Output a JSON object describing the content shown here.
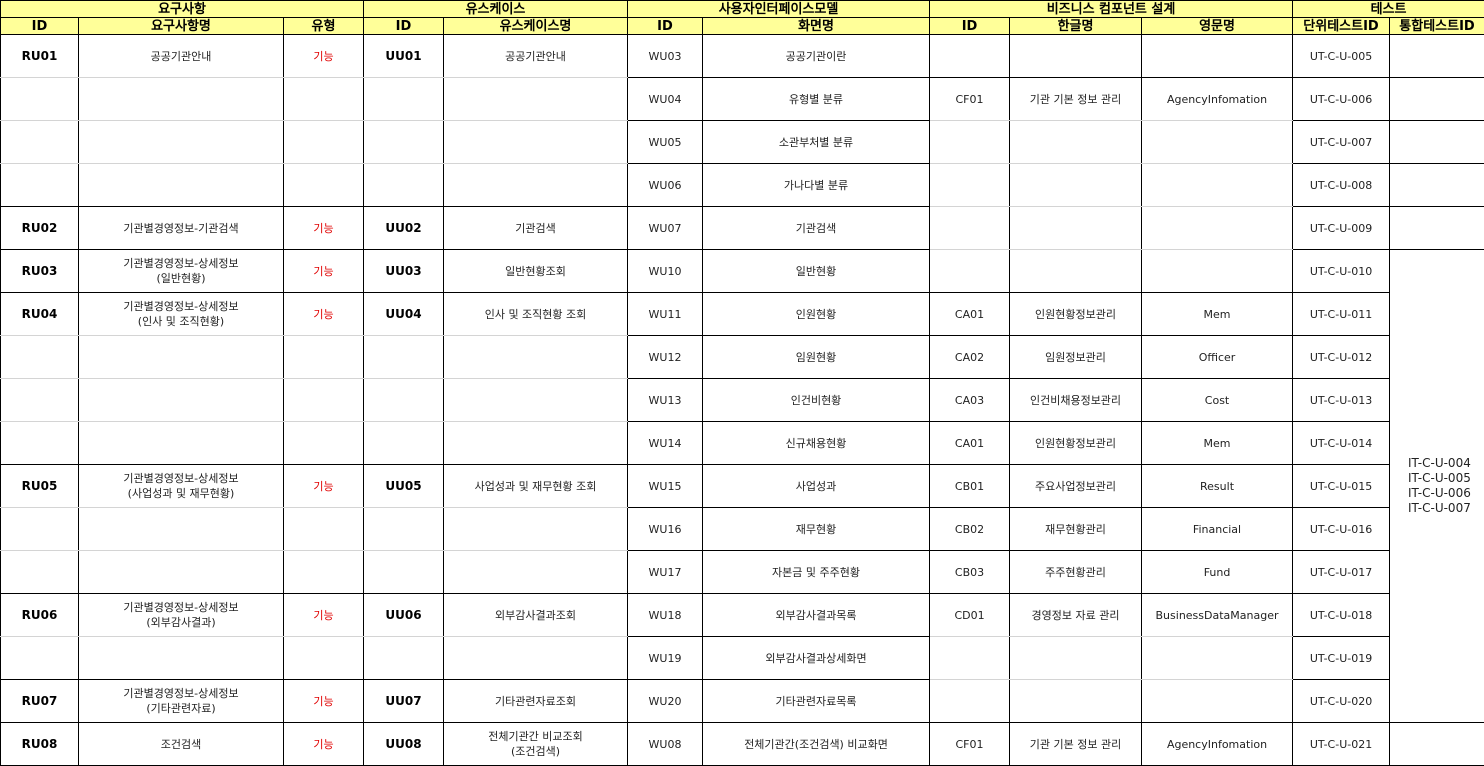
{
  "header_groups": [
    {
      "label": "요구사항",
      "span": 3
    },
    {
      "label": "유스케이스",
      "span": 2
    },
    {
      "label": "사용자인터페이스모델",
      "span": 2
    },
    {
      "label": "비즈니스 컴포넌트 설계",
      "span": 3
    },
    {
      "label": "테스트",
      "span": 2
    }
  ],
  "columns": [
    "ID",
    "요구사항명",
    "유형",
    "ID",
    "유스케이스명",
    "ID",
    "화면명",
    "ID",
    "한글명",
    "영문명",
    "단위테스트ID",
    "통합테스트ID"
  ],
  "rows": [
    [
      "RU01",
      "공공기관안내",
      "기능",
      "UU01",
      "공공기관안내",
      "WU03",
      "공공기관이란",
      "",
      "",
      "",
      "UT-C-U-005"
    ],
    [
      "",
      "",
      "",
      "",
      "",
      "WU04",
      "유형별 분류",
      "CF01",
      "기관 기본 정보 관리",
      "AgencyInfomation",
      "UT-C-U-006"
    ],
    [
      "",
      "",
      "",
      "",
      "",
      "WU05",
      "소관부처별 분류",
      "",
      "",
      "",
      "UT-C-U-007"
    ],
    [
      "",
      "",
      "",
      "",
      "",
      "WU06",
      "가나다별 분류",
      "",
      "",
      "",
      "UT-C-U-008"
    ],
    [
      "RU02",
      "기관별경영정보-기관검색",
      "기능",
      "UU02",
      "기관검색",
      "WU07",
      "기관검색",
      "",
      "",
      "",
      "UT-C-U-009"
    ],
    [
      "RU03",
      "기관별경영정보-상세정보\n(일반현황)",
      "기능",
      "UU03",
      "일반현황조회",
      "WU10",
      "일반현황",
      "",
      "",
      "",
      "UT-C-U-010"
    ],
    [
      "RU04",
      "기관별경영정보-상세정보\n(인사 및 조직현황)",
      "기능",
      "UU04",
      "인사 및 조직현황 조회",
      "WU11",
      "인원현황",
      "CA01",
      "인원현황정보관리",
      "Mem",
      "UT-C-U-011"
    ],
    [
      "",
      "",
      "",
      "",
      "",
      "WU12",
      "임원현황",
      "CA02",
      "임원정보관리",
      "Officer",
      "UT-C-U-012"
    ],
    [
      "",
      "",
      "",
      "",
      "",
      "WU13",
      "인건비현황",
      "CA03",
      "인건비채용정보관리",
      "Cost",
      "UT-C-U-013"
    ],
    [
      "",
      "",
      "",
      "",
      "",
      "WU14",
      "신규채용현황",
      "CA01",
      "인원현황정보관리",
      "Mem",
      "UT-C-U-014"
    ],
    [
      "RU05",
      "기관별경영정보-상세정보\n(사업성과 및 재무현황)",
      "기능",
      "UU05",
      "사업성과 및 재무현황 조회",
      "WU15",
      "사업성과",
      "CB01",
      "주요사업정보관리",
      "Result",
      "UT-C-U-015"
    ],
    [
      "",
      "",
      "",
      "",
      "",
      "WU16",
      "재무현황",
      "CB02",
      "재무현황관리",
      "Financial",
      "UT-C-U-016"
    ],
    [
      "",
      "",
      "",
      "",
      "",
      "WU17",
      "자본금 및 주주현황",
      "CB03",
      "주주현황관리",
      "Fund",
      "UT-C-U-017"
    ],
    [
      "RU06",
      "기관별경영정보-상세정보\n(외부감사결과)",
      "기능",
      "UU06",
      "외부감사결과조회",
      "WU18",
      "외부감사결과목록",
      "CD01",
      "경영정보 자료 관리",
      "BusinessDataManager",
      "UT-C-U-018"
    ],
    [
      "",
      "",
      "",
      "",
      "",
      "WU19",
      "외부감사결과상세화면",
      "",
      "",
      "",
      "UT-C-U-019"
    ],
    [
      "RU07",
      "기관별경영정보-상세정보\n(기타관련자료)",
      "기능",
      "UU07",
      "기타관련자료조회",
      "WU20",
      "기타관련자료목록",
      "",
      "",
      "",
      "UT-C-U-020"
    ],
    [
      "RU08",
      "조건검색",
      "기능",
      "UU08",
      "전체기관간 비교조회\n(조건검색)",
      "WU08",
      "전체기관간(조건검색) 비교화면",
      "CF01",
      "기관 기본 정보 관리",
      "AgencyInfomation",
      "UT-C-U-021"
    ]
  ],
  "integration_test_ids": "IT-C-U-004\nIT-C-U-005\nIT-C-U-006\nIT-C-U-007",
  "colors": {
    "header_bg": "#ffff99",
    "type_text": "#e00000",
    "soft_border": "#d4d4d4"
  }
}
